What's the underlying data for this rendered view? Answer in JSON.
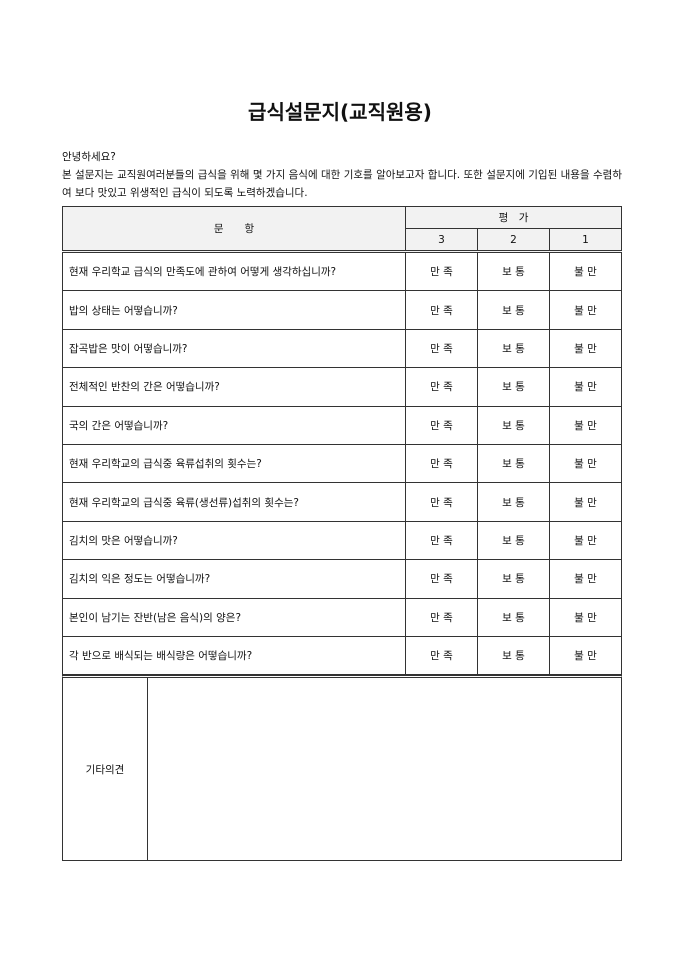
{
  "title": "급식설문지(교직원용)",
  "intro": {
    "greeting": "안녕하세요?",
    "body": "본 설문지는 교직원여러분들의 급식을 위해 몇 가지 음식에 대한 기호를 알아보고자 합니다. 또한 설문지에 기입된 내용을 수렴하여 보다 맛있고 위생적인 급식이 되도록 노력하겠습니다."
  },
  "table": {
    "question_header": "문　　항",
    "rating_header": "평　가",
    "scores": [
      "3",
      "2",
      "1"
    ],
    "options": [
      "만 족",
      "보 통",
      "불 만"
    ],
    "questions": [
      "현재 우리학교 급식의 만족도에 관하여 어떻게 생각하십니까?",
      "밥의 상태는 어떻습니까?",
      "잡곡밥은 맛이 어떻습니까?",
      "전체적인 반찬의 간은 어떻습니까?",
      "국의 간은 어떻습니까?",
      "현재 우리학교의 급식중 육류섭취의 횟수는?",
      "현재 우리학교의 급식중 육류(생선류)섭취의 횟수는?",
      "김치의 맛은 어떻습니까?",
      "김치의 익은 정도는 어떻습니까?",
      "본인이 남기는 잔반(남은 음식)의 양은?",
      "각 반으로 배식되는 배식량은 어떻습니까?"
    ]
  },
  "other": {
    "label": "기타의견",
    "value": ""
  }
}
